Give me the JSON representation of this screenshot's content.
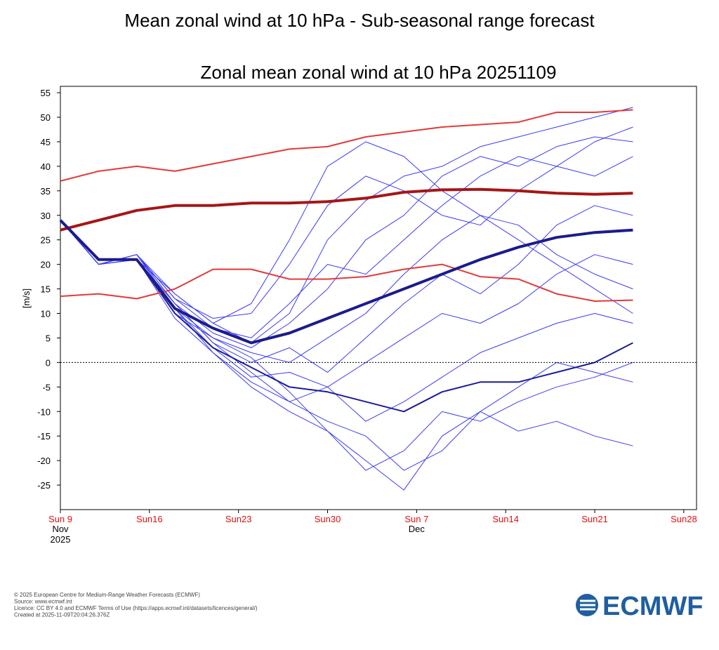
{
  "page_title": "Mean zonal wind at 10 hPa - Sub-seasonal range forecast",
  "chart_data": {
    "type": "line",
    "title": "Zonal mean zonal wind at 10 hPa 20251109",
    "y_label": "[m/s]",
    "x": [
      "2025-11-09",
      "2025-11-12",
      "2025-11-15",
      "2025-11-18",
      "2025-11-21",
      "2025-11-24",
      "2025-11-27",
      "2025-11-30",
      "2025-12-03",
      "2025-12-06",
      "2025-12-09",
      "2025-12-12",
      "2025-12-15",
      "2025-12-18",
      "2025-12-21",
      "2025-12-24"
    ],
    "xlim": [
      "2025-11-09",
      "2025-12-29"
    ],
    "xticks": [
      {
        "value": "2025-11-09",
        "label": "Sun 9"
      },
      {
        "value": "2025-11-16",
        "label": "Sun16"
      },
      {
        "value": "2025-11-23",
        "label": "Sun23"
      },
      {
        "value": "2025-11-30",
        "label": "Sun30"
      },
      {
        "value": "2025-12-07",
        "label": "Sun 7"
      },
      {
        "value": "2025-12-14",
        "label": "Sun14"
      },
      {
        "value": "2025-12-21",
        "label": "Sun21"
      },
      {
        "value": "2025-12-28",
        "label": "Sun28"
      }
    ],
    "x_month_labels": [
      {
        "value": "2025-11-09",
        "label": "Nov"
      },
      {
        "value": "2025-12-07",
        "label": "Dec"
      }
    ],
    "x_year_label": {
      "value": "2025-11-09",
      "label": "2025"
    },
    "ylim": [
      -30,
      56.3
    ],
    "yticks": [
      -25,
      -20,
      -15,
      -10,
      -5,
      0,
      5,
      10,
      15,
      20,
      25,
      30,
      35,
      40,
      45,
      50,
      55
    ],
    "zero_line": true,
    "series": [
      {
        "color": "#3b3bf5",
        "values": [
          29,
          20,
          21,
          14,
          8,
          4,
          10,
          25,
          33,
          38,
          40,
          44,
          46,
          48,
          50,
          52
        ]
      },
      {
        "color": "#3b3bf5",
        "values": [
          29,
          20,
          22,
          12,
          4,
          -2,
          -8,
          -12,
          -15,
          -22,
          -18,
          -10,
          -5,
          0,
          -2,
          -4
        ]
      },
      {
        "color": "#3b3bf5",
        "values": [
          29,
          20,
          21,
          11,
          2,
          -5,
          -10,
          -14,
          -20,
          -26,
          -15,
          -10,
          -14,
          -12,
          -15,
          -17
        ]
      },
      {
        "color": "#3b3bf5",
        "values": [
          29,
          20,
          22,
          13,
          9,
          10,
          20,
          32,
          38,
          35,
          30,
          28,
          35,
          40,
          45,
          48
        ]
      },
      {
        "color": "#3b3bf5",
        "values": [
          29,
          20,
          21,
          10,
          5,
          2,
          0,
          5,
          10,
          18,
          25,
          30,
          28,
          22,
          18,
          15
        ]
      },
      {
        "color": "#3b3bf5",
        "values": [
          29,
          20,
          22,
          12,
          6,
          3,
          8,
          15,
          25,
          30,
          38,
          42,
          40,
          44,
          46,
          45
        ]
      },
      {
        "color": "#3b3bf5",
        "values": [
          29,
          20,
          21,
          11,
          3,
          -3,
          -2,
          -5,
          0,
          5,
          10,
          8,
          12,
          18,
          22,
          20
        ]
      },
      {
        "color": "#3b3bf5",
        "values": [
          29,
          20,
          22,
          14,
          8,
          12,
          25,
          40,
          45,
          42,
          35,
          30,
          25,
          20,
          15,
          10
        ]
      },
      {
        "color": "#3b3bf5",
        "values": [
          29,
          20,
          21,
          9,
          2,
          -4,
          -8,
          -5,
          -12,
          -8,
          -3,
          2,
          5,
          8,
          10,
          8
        ]
      },
      {
        "color": "#3b3bf5",
        "values": [
          29,
          20,
          22,
          13,
          7,
          5,
          12,
          20,
          18,
          25,
          32,
          38,
          42,
          40,
          38,
          42
        ]
      },
      {
        "color": "#3b3bf5",
        "values": [
          29,
          20,
          21,
          12,
          4,
          0,
          3,
          -2,
          5,
          12,
          18,
          14,
          20,
          28,
          32,
          30
        ]
      },
      {
        "color": "#3b3bf5",
        "values": [
          29,
          20,
          22,
          11,
          5,
          1,
          -6,
          -14,
          -22,
          -18,
          -10,
          -12,
          -8,
          -5,
          -3,
          0
        ]
      },
      {
        "color": "#1c1c9a",
        "width": 2,
        "values": [
          29,
          21,
          21,
          10,
          3,
          -1,
          -5,
          -6,
          -8,
          -10,
          -6,
          -4,
          -4,
          -2,
          0,
          4
        ]
      },
      {
        "color": "#e23a3a",
        "width": 2,
        "values": [
          37,
          39,
          40,
          39,
          40.5,
          42,
          43.5,
          44,
          46,
          47,
          48,
          48.5,
          49,
          51,
          51,
          51.5
        ]
      },
      {
        "color": "#e23a3a",
        "width": 2,
        "values": [
          13.5,
          14,
          13,
          15,
          19,
          19,
          17,
          17,
          17.5,
          19,
          20,
          17.5,
          17,
          14,
          12.5,
          12.7
        ]
      },
      {
        "color": "#a51616",
        "width": 4,
        "values": [
          27,
          29,
          31,
          32,
          32,
          32.5,
          32.5,
          32.8,
          33.5,
          34.7,
          35.2,
          35.3,
          35,
          34.5,
          34.3,
          34.5
        ]
      },
      {
        "color": "#1c1c8c",
        "width": 4,
        "values": [
          29,
          21,
          21,
          11,
          7,
          4,
          6,
          9,
          12,
          15,
          18,
          21,
          23.5,
          25.5,
          26.5,
          27
        ]
      }
    ]
  },
  "footer": {
    "lines": [
      "© 2025 European Centre for Medium-Range Weather Forecasts (ECMWF)",
      "Source: www.ecmwf.int",
      "Licence: CC BY 4.0 and ECMWF Terms of Use (https://apps.ecmwf.int/datasets/licences/general/)",
      "Created at 2025-11-09T20:04:26.376Z"
    ],
    "logo": "ECMWF"
  }
}
